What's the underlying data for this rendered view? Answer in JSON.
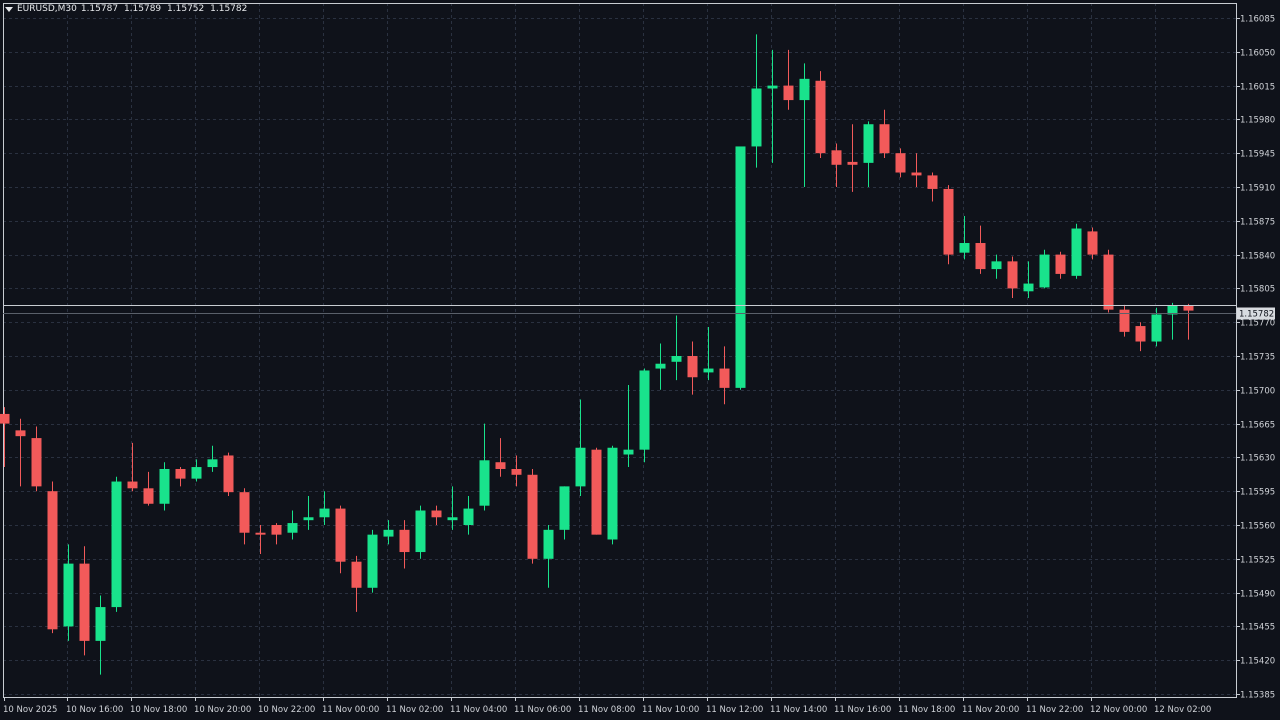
{
  "header": {
    "symbol": "EURUSD,M30",
    "open": "1.15787",
    "high": "1.15789",
    "low": "1.15752",
    "close": "1.15782"
  },
  "colors": {
    "background": "#0f121a",
    "grid": "#2a3140",
    "up": "#19e38c",
    "down": "#f25a5a",
    "doji": "#6fd6ff",
    "axis_text": "#d0d3d8",
    "price_line": "#c8ccd2"
  },
  "chart_data": {
    "type": "candlestick",
    "symbol": "EURUSD",
    "timeframe": "M30",
    "grid": true,
    "ylim": [
      1.1538,
      1.1609
    ],
    "y_ticks": [
      "1.16085",
      "1.16050",
      "1.16015",
      "1.15980",
      "1.15945",
      "1.15910",
      "1.15875",
      "1.15840",
      "1.15805",
      "1.15770",
      "1.15735",
      "1.15700",
      "1.15665",
      "1.15630",
      "1.15595",
      "1.15560",
      "1.15525",
      "1.15490",
      "1.15455",
      "1.15420",
      "1.15385"
    ],
    "x_ticks": [
      "10 Nov 2025",
      "10 Nov 16:00",
      "10 Nov 18:00",
      "10 Nov 20:00",
      "10 Nov 22:00",
      "11 Nov 00:00",
      "11 Nov 02:00",
      "11 Nov 04:00",
      "11 Nov 06:00",
      "11 Nov 08:00",
      "11 Nov 10:00",
      "11 Nov 12:00",
      "11 Nov 14:00",
      "11 Nov 16:00",
      "11 Nov 18:00",
      "11 Nov 20:00",
      "11 Nov 22:00",
      "12 Nov 00:00",
      "12 Nov 02:00"
    ],
    "current_price": "1.15782",
    "current_price_line_2": 1.15788,
    "candles": [
      {
        "o": 1.15675,
        "h": 1.15682,
        "l": 1.1562,
        "c": 1.15665
      },
      {
        "o": 1.15658,
        "h": 1.1567,
        "l": 1.156,
        "c": 1.15652
      },
      {
        "o": 1.1565,
        "h": 1.15662,
        "l": 1.15595,
        "c": 1.156
      },
      {
        "o": 1.15595,
        "h": 1.15605,
        "l": 1.15448,
        "c": 1.15452
      },
      {
        "o": 1.15455,
        "h": 1.1554,
        "l": 1.1544,
        "c": 1.1552
      },
      {
        "o": 1.1552,
        "h": 1.15538,
        "l": 1.15425,
        "c": 1.1544
      },
      {
        "o": 1.1544,
        "h": 1.15487,
        "l": 1.15405,
        "c": 1.15475
      },
      {
        "o": 1.15475,
        "h": 1.1561,
        "l": 1.1547,
        "c": 1.15605
      },
      {
        "o": 1.15605,
        "h": 1.15645,
        "l": 1.15595,
        "c": 1.15598
      },
      {
        "o": 1.15598,
        "h": 1.15615,
        "l": 1.1558,
        "c": 1.15582
      },
      {
        "o": 1.15582,
        "h": 1.15625,
        "l": 1.15575,
        "c": 1.15618
      },
      {
        "o": 1.15618,
        "h": 1.1562,
        "l": 1.156,
        "c": 1.15608
      },
      {
        "o": 1.15608,
        "h": 1.15628,
        "l": 1.15605,
        "c": 1.1562
      },
      {
        "o": 1.1562,
        "h": 1.15642,
        "l": 1.15615,
        "c": 1.15628
      },
      {
        "o": 1.15632,
        "h": 1.15635,
        "l": 1.1559,
        "c": 1.15594
      },
      {
        "o": 1.15594,
        "h": 1.15598,
        "l": 1.1554,
        "c": 1.15552
      },
      {
        "o": 1.15552,
        "h": 1.1556,
        "l": 1.1553,
        "c": 1.1555
      },
      {
        "o": 1.1556,
        "h": 1.15562,
        "l": 1.1554,
        "c": 1.1555
      },
      {
        "o": 1.15552,
        "h": 1.15575,
        "l": 1.15545,
        "c": 1.15562
      },
      {
        "o": 1.15565,
        "h": 1.1559,
        "l": 1.15555,
        "c": 1.15568
      },
      {
        "o": 1.15568,
        "h": 1.15595,
        "l": 1.1556,
        "c": 1.15577
      },
      {
        "o": 1.15577,
        "h": 1.1558,
        "l": 1.1551,
        "c": 1.15522
      },
      {
        "o": 1.15522,
        "h": 1.15528,
        "l": 1.1547,
        "c": 1.15495
      },
      {
        "o": 1.15495,
        "h": 1.15555,
        "l": 1.1549,
        "c": 1.1555
      },
      {
        "o": 1.15548,
        "h": 1.15565,
        "l": 1.1554,
        "c": 1.15555
      },
      {
        "o": 1.15555,
        "h": 1.15565,
        "l": 1.15515,
        "c": 1.15532
      },
      {
        "o": 1.15532,
        "h": 1.1558,
        "l": 1.15525,
        "c": 1.15575
      },
      {
        "o": 1.15575,
        "h": 1.1558,
        "l": 1.1556,
        "c": 1.15568
      },
      {
        "o": 1.15565,
        "h": 1.156,
        "l": 1.15555,
        "c": 1.15568
      },
      {
        "o": 1.1556,
        "h": 1.1559,
        "l": 1.1555,
        "c": 1.15577
      },
      {
        "o": 1.1558,
        "h": 1.15665,
        "l": 1.15575,
        "c": 1.15627
      },
      {
        "o": 1.15625,
        "h": 1.1565,
        "l": 1.1561,
        "c": 1.15618
      },
      {
        "o": 1.15618,
        "h": 1.15632,
        "l": 1.156,
        "c": 1.15612
      },
      {
        "o": 1.15612,
        "h": 1.15618,
        "l": 1.1552,
        "c": 1.15525
      },
      {
        "o": 1.15525,
        "h": 1.1556,
        "l": 1.15495,
        "c": 1.15555
      },
      {
        "o": 1.15555,
        "h": 1.156,
        "l": 1.15545,
        "c": 1.156
      },
      {
        "o": 1.156,
        "h": 1.1569,
        "l": 1.1559,
        "c": 1.1564
      },
      {
        "o": 1.15638,
        "h": 1.1564,
        "l": 1.1555,
        "c": 1.1555
      },
      {
        "o": 1.15545,
        "h": 1.15642,
        "l": 1.1554,
        "c": 1.1564
      },
      {
        "o": 1.15633,
        "h": 1.15705,
        "l": 1.1562,
        "c": 1.15638
      },
      {
        "o": 1.15638,
        "h": 1.15722,
        "l": 1.15625,
        "c": 1.1572
      },
      {
        "o": 1.15722,
        "h": 1.15748,
        "l": 1.157,
        "c": 1.15727
      },
      {
        "o": 1.15729,
        "h": 1.15777,
        "l": 1.1571,
        "c": 1.15735
      },
      {
        "o": 1.15735,
        "h": 1.1575,
        "l": 1.15695,
        "c": 1.15713
      },
      {
        "o": 1.15718,
        "h": 1.15765,
        "l": 1.1571,
        "c": 1.15722
      },
      {
        "o": 1.15722,
        "h": 1.15745,
        "l": 1.15685,
        "c": 1.15702
      },
      {
        "o": 1.15702,
        "h": 1.15952,
        "l": 1.157,
        "c": 1.15952
      },
      {
        "o": 1.15952,
        "h": 1.16068,
        "l": 1.1593,
        "c": 1.16012
      },
      {
        "o": 1.16012,
        "h": 1.16052,
        "l": 1.15935,
        "c": 1.16015
      },
      {
        "o": 1.16015,
        "h": 1.16052,
        "l": 1.1599,
        "c": 1.16
      },
      {
        "o": 1.16,
        "h": 1.16038,
        "l": 1.1591,
        "c": 1.16022
      },
      {
        "o": 1.1602,
        "h": 1.1603,
        "l": 1.1594,
        "c": 1.15945
      },
      {
        "o": 1.15948,
        "h": 1.15955,
        "l": 1.1591,
        "c": 1.15933
      },
      {
        "o": 1.15936,
        "h": 1.15975,
        "l": 1.15905,
        "c": 1.15933
      },
      {
        "o": 1.15935,
        "h": 1.15978,
        "l": 1.1591,
        "c": 1.15975
      },
      {
        "o": 1.15975,
        "h": 1.1599,
        "l": 1.1594,
        "c": 1.15945
      },
      {
        "o": 1.15945,
        "h": 1.1595,
        "l": 1.1592,
        "c": 1.15925
      },
      {
        "o": 1.15925,
        "h": 1.15945,
        "l": 1.1591,
        "c": 1.15922
      },
      {
        "o": 1.15922,
        "h": 1.15925,
        "l": 1.15895,
        "c": 1.15908
      },
      {
        "o": 1.15908,
        "h": 1.15912,
        "l": 1.1583,
        "c": 1.1584
      },
      {
        "o": 1.15842,
        "h": 1.1588,
        "l": 1.15835,
        "c": 1.15852
      },
      {
        "o": 1.15852,
        "h": 1.1587,
        "l": 1.1582,
        "c": 1.15825
      },
      {
        "o": 1.15825,
        "h": 1.1584,
        "l": 1.15815,
        "c": 1.15833
      },
      {
        "o": 1.15833,
        "h": 1.15838,
        "l": 1.15795,
        "c": 1.15805
      },
      {
        "o": 1.15802,
        "h": 1.15833,
        "l": 1.15795,
        "c": 1.1581
      },
      {
        "o": 1.15806,
        "h": 1.15845,
        "l": 1.15805,
        "c": 1.1584
      },
      {
        "o": 1.1584,
        "h": 1.15843,
        "l": 1.15815,
        "c": 1.1582
      },
      {
        "o": 1.15818,
        "h": 1.15872,
        "l": 1.15815,
        "c": 1.15867
      },
      {
        "o": 1.15864,
        "h": 1.15868,
        "l": 1.15835,
        "c": 1.1584
      },
      {
        "o": 1.1584,
        "h": 1.15845,
        "l": 1.1578,
        "c": 1.15783
      },
      {
        "o": 1.15783,
        "h": 1.15788,
        "l": 1.15755,
        "c": 1.1576
      },
      {
        "o": 1.15766,
        "h": 1.1577,
        "l": 1.1574,
        "c": 1.1575
      },
      {
        "o": 1.1575,
        "h": 1.15785,
        "l": 1.15745,
        "c": 1.15778
      },
      {
        "o": 1.15778,
        "h": 1.1579,
        "l": 1.15752,
        "c": 1.15787
      },
      {
        "o": 1.15787,
        "h": 1.15789,
        "l": 1.15752,
        "c": 1.15782
      }
    ]
  }
}
